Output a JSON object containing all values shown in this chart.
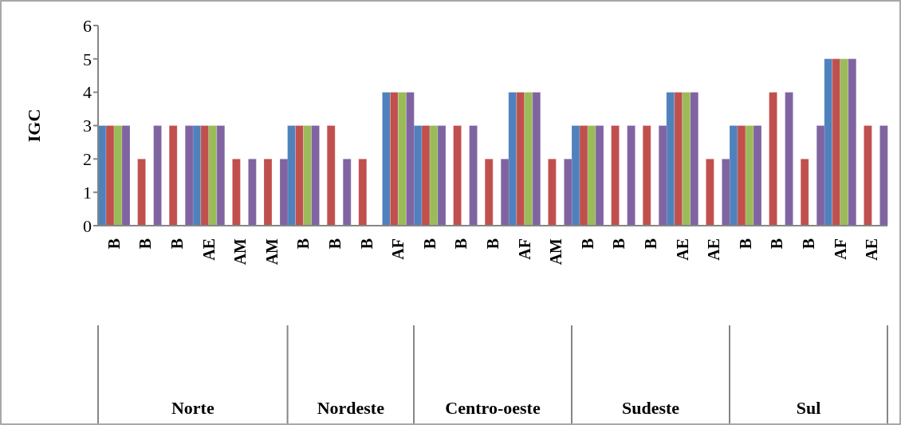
{
  "chart_data": {
    "type": "bar",
    "ylabel": "IGC",
    "ylim": [
      0,
      6
    ],
    "yticks": [
      0,
      1,
      2,
      3,
      4,
      5,
      6
    ],
    "categories": [
      "B",
      "B",
      "B",
      "AE",
      "AM",
      "AM",
      "B",
      "B",
      "B",
      "AF",
      "B",
      "B",
      "B",
      "AF",
      "AM",
      "B",
      "B",
      "B",
      "AE",
      "AE",
      "B",
      "B",
      "B",
      "AF",
      "AE"
    ],
    "annotations": [
      "Norte",
      "Nordeste",
      "Centro-oeste",
      "Sudeste",
      "Sul"
    ],
    "series": [
      {
        "color": "#4f81bd",
        "values": [
          3,
          null,
          null,
          3,
          null,
          null,
          3,
          null,
          null,
          4,
          3,
          null,
          null,
          4,
          null,
          3,
          null,
          null,
          4,
          null,
          3,
          null,
          null,
          5,
          null
        ]
      },
      {
        "color": "#c0504d",
        "values": [
          3,
          2,
          3,
          3,
          2,
          2,
          3,
          3,
          2,
          4,
          3,
          3,
          2,
          4,
          2,
          3,
          3,
          3,
          4,
          2,
          3,
          4,
          2,
          5,
          3
        ]
      },
      {
        "color": "#9bbb59",
        "values": [
          3,
          null,
          null,
          3,
          null,
          null,
          3,
          null,
          null,
          4,
          3,
          null,
          null,
          4,
          null,
          3,
          null,
          null,
          4,
          null,
          3,
          null,
          null,
          5,
          null
        ]
      },
      {
        "color": "#8064a2",
        "values": [
          3,
          3,
          3,
          3,
          2,
          2,
          3,
          2,
          null,
          4,
          3,
          3,
          2,
          4,
          2,
          3,
          3,
          3,
          4,
          2,
          3,
          4,
          3,
          5,
          3
        ]
      }
    ]
  }
}
